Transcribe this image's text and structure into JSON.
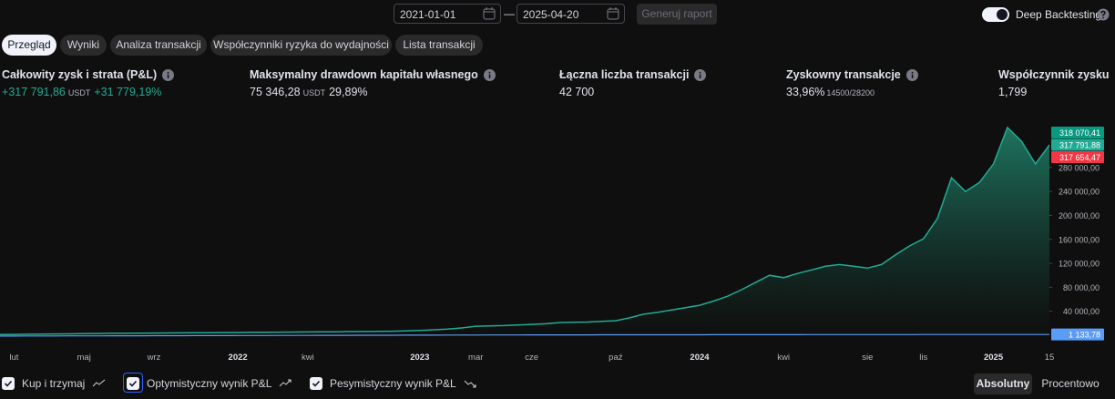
{
  "toolbar": {
    "date_from": "2021-01-01",
    "separator": "—",
    "date_to": "2025-04-20",
    "generate_button": "Generuj raport",
    "deep_backtesting": "Deep Backtesting"
  },
  "tabs": [
    "Przegląd",
    "Wyniki",
    "Analiza transakcji",
    "Współczynniki ryzyka do wydajności",
    "Lista transakcji"
  ],
  "stats": [
    {
      "label": "Całkowity zysk i strata (P&L)",
      "value": "+317 791,86",
      "unit": "USDT",
      "extra": "+31 779,19%"
    },
    {
      "label": "Maksymalny drawdown kapitału własnego",
      "value": "75 346,28",
      "unit": "USDT",
      "extra": "29,89%"
    },
    {
      "label": "Łączna liczba transakcji",
      "value": "42 700"
    },
    {
      "label": "Zyskowny transakcje",
      "value": "33,96%",
      "extra": "14500/28200"
    },
    {
      "label": "Współczynnik zysku",
      "value": "1,799"
    }
  ],
  "chart_data": {
    "type": "area",
    "categories": [
      null,
      "lut",
      null,
      null,
      null,
      null,
      "maj",
      null,
      null,
      null,
      null,
      "wrz",
      null,
      null,
      null,
      null,
      null,
      "2022",
      null,
      null,
      null,
      null,
      "kwi",
      null,
      null,
      null,
      null,
      null,
      null,
      null,
      "2023",
      null,
      null,
      null,
      "mar",
      null,
      null,
      null,
      "cze",
      null,
      null,
      null,
      null,
      null,
      "paź",
      null,
      null,
      null,
      null,
      null,
      "2024",
      null,
      null,
      null,
      null,
      null,
      "kwi",
      null,
      null,
      null,
      null,
      null,
      "sie",
      null,
      null,
      null,
      "lis",
      null,
      null,
      null,
      null,
      "2025",
      null,
      null,
      null,
      "15"
    ],
    "series": [
      {
        "color": "#22ab94",
        "values": [
          1000,
          1200,
          1500,
          1800,
          2000,
          2200,
          2500,
          2800,
          3000,
          3100,
          3300,
          3500,
          3600,
          3800,
          4000,
          4200,
          4300,
          4500,
          4700,
          4800,
          5000,
          5200,
          5300,
          5500,
          5700,
          5900,
          6100,
          6300,
          6500,
          7000,
          8000,
          9000,
          10000,
          12000,
          15000,
          15500,
          16000,
          17000,
          18000,
          19000,
          21000,
          21500,
          22000,
          23000,
          24000,
          29000,
          35000,
          38000,
          42000,
          46000,
          50000,
          57000,
          65000,
          76000,
          88000,
          100000,
          96000,
          103000,
          109000,
          115000,
          118000,
          115000,
          112000,
          118000,
          134000,
          149000,
          161000,
          195000,
          263000,
          240000,
          255000,
          286000,
          347000,
          324000,
          286000,
          317791.88
        ]
      },
      {
        "name": "Kup i trzymaj",
        "color": "#5b9cf6",
        "values": [
          -1500,
          -1450,
          -1400,
          -1350,
          -1300,
          -1250,
          -1200,
          -1150,
          -1100,
          -1050,
          -1000,
          -950,
          -900,
          -850,
          -800,
          -750,
          -700,
          -650,
          -600,
          -550,
          -500,
          -450,
          -400,
          -350,
          -300,
          -250,
          -200,
          -150,
          -100,
          -50,
          0,
          50,
          100,
          150,
          200,
          250,
          300,
          350,
          400,
          450,
          500,
          520,
          540,
          560,
          580,
          600,
          620,
          640,
          660,
          680,
          700,
          720,
          740,
          760,
          780,
          800,
          820,
          840,
          860,
          880,
          900,
          920,
          940,
          960,
          980,
          1000,
          1020,
          1040,
          1060,
          1080,
          1090,
          1100,
          1110,
          1120,
          1130,
          1133.78
        ]
      }
    ],
    "ylim": [
      -26000,
      362000
    ],
    "yticks": [
      {
        "value": 40000,
        "label": "40 000,00"
      },
      {
        "value": 80000,
        "label": "80 000,00"
      },
      {
        "value": 120000,
        "label": "120 000,00"
      },
      {
        "value": 160000,
        "label": "160 000,00"
      },
      {
        "value": 200000,
        "label": "200 000,00"
      },
      {
        "value": 240000,
        "label": "240 000,00"
      },
      {
        "value": 280000,
        "label": "280 000,00"
      }
    ],
    "price_labels": [
      {
        "value": 318070.41,
        "label": "318 070,41",
        "color": "#089981"
      },
      {
        "value": 317791.88,
        "label": "317 791,88",
        "color": "#22ab94"
      },
      {
        "value": 317654.47,
        "label": "317 654,47",
        "color": "#f23645"
      },
      {
        "value": 1133.78,
        "label": "1 133,78",
        "color": "#5b9cf6"
      }
    ]
  },
  "footer": {
    "legend": [
      "Optymistyczny wynik P&L",
      "Pesymistyczny wynik P&L"
    ],
    "modes": [
      "Absolutny",
      "Procentowo"
    ]
  }
}
